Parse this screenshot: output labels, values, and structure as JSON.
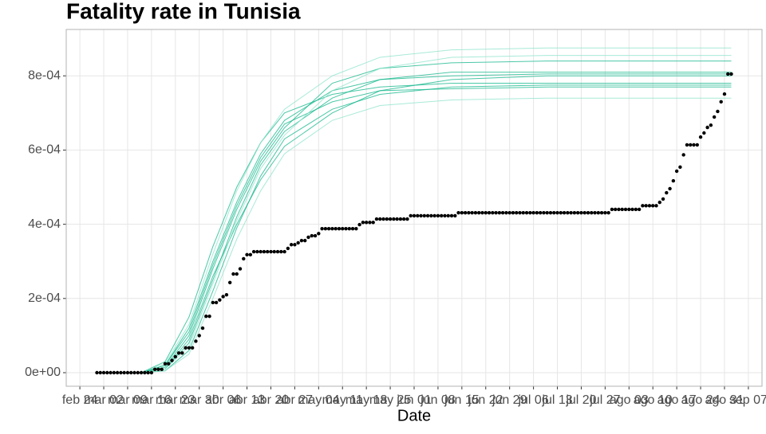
{
  "chart_data": {
    "type": "line",
    "title": "Fatality rate in  Tunisia",
    "x_label": "Date",
    "grid": true,
    "categories": [
      "feb 24",
      "feb 25",
      "feb 26",
      "feb 27",
      "feb 28",
      "feb 29",
      "mar 01",
      "mar 02",
      "mar 03",
      "mar 04",
      "mar 05",
      "mar 06",
      "mar 07",
      "mar 08",
      "mar 09",
      "mar 10",
      "mar 11",
      "mar 12",
      "mar 13",
      "mar 14",
      "mar 15",
      "mar 16",
      "mar 17",
      "mar 18",
      "mar 19",
      "mar 20",
      "mar 21",
      "mar 22",
      "mar 23",
      "mar 24",
      "mar 25",
      "mar 26",
      "mar 27",
      "mar 28",
      "mar 29",
      "mar 30",
      "mar 31",
      "abr 01",
      "abr 02",
      "abr 03",
      "abr 04",
      "abr 05",
      "abr 06",
      "abr 07",
      "abr 08",
      "abr 09",
      "abr 10",
      "abr 11",
      "abr 12",
      "abr 13",
      "abr 14",
      "abr 15",
      "abr 16",
      "abr 17",
      "abr 18",
      "abr 19",
      "abr 20",
      "abr 21",
      "abr 22",
      "abr 23",
      "abr 24",
      "abr 25",
      "abr 26",
      "abr 27",
      "abr 28",
      "abr 29",
      "abr 30",
      "may 01",
      "may 02",
      "may 03",
      "may 04",
      "may 05",
      "may 06",
      "may 07",
      "may 08",
      "may 09",
      "may 10",
      "may 11",
      "may 12",
      "may 13",
      "may 14",
      "may 15",
      "may 16",
      "may 17",
      "may 18",
      "may 19",
      "may 20",
      "may 21",
      "may 22",
      "may 23",
      "may 24",
      "may 25",
      "may 26",
      "may 27",
      "may 28",
      "may 29",
      "may 30",
      "may 31",
      "jun 01",
      "jun 02",
      "jun 03",
      "jun 04",
      "jun 05",
      "jun 06",
      "jun 07",
      "jun 08",
      "jun 09",
      "jun 10",
      "jun 11",
      "jun 12",
      "jun 13",
      "jun 14",
      "jun 15",
      "jun 16",
      "jun 17",
      "jun 18",
      "jun 19",
      "jun 20",
      "jun 21",
      "jun 22",
      "jun 23",
      "jun 24",
      "jun 25",
      "jun 26",
      "jun 27",
      "jun 28",
      "jun 29",
      "jun 30",
      "jul 01",
      "jul 02",
      "jul 03",
      "jul 04",
      "jul 05",
      "jul 06",
      "jul 07",
      "jul 08",
      "jul 09",
      "jul 10",
      "jul 11",
      "jul 12",
      "jul 13",
      "jul 14",
      "jul 15",
      "jul 16",
      "jul 17",
      "jul 18",
      "jul 19",
      "jul 20",
      "jul 21",
      "jul 22",
      "jul 23",
      "jul 24",
      "jul 25",
      "jul 26",
      "jul 27",
      "jul 28",
      "jul 29",
      "jul 30",
      "jul 31",
      "ago 01",
      "ago 02",
      "ago 03",
      "ago 04",
      "ago 05",
      "ago 06",
      "ago 07",
      "ago 08",
      "ago 09",
      "ago 10",
      "ago 11",
      "ago 12",
      "ago 13",
      "ago 14",
      "ago 15",
      "ago 16",
      "ago 17",
      "ago 18",
      "ago 19",
      "ago 20",
      "ago 21",
      "ago 22",
      "ago 23",
      "ago 24",
      "ago 25",
      "ago 26",
      "ago 27",
      "ago 28",
      "ago 29",
      "ago 30",
      "ago 31",
      "sep 01",
      "sep 02",
      "sep 03",
      "sep 04",
      "sep 05",
      "sep 06",
      "sep 07"
    ],
    "xticks": [
      "feb 24",
      "mar 02",
      "mar 09",
      "mar 16",
      "mar 23",
      "mar 30",
      "abr 06",
      "abr 13",
      "abr 20",
      "abr 27",
      "may 04",
      "may 11",
      "may 18",
      "may 25",
      "jun 01",
      "jun 08",
      "jun 15",
      "jun 22",
      "jun 29",
      "jul 06",
      "jul 13",
      "jul 20",
      "jul 27",
      "ago 03",
      "ago 10",
      "ago 17",
      "ago 24",
      "ago 31",
      "sep 07"
    ],
    "ylim": [
      -3.65e-05,
      0.000925
    ],
    "yticks": [
      {
        "value": 0,
        "label": "0e+00"
      },
      {
        "value": 0.0002,
        "label": "2e-04"
      },
      {
        "value": 0.0004,
        "label": "4e-04"
      },
      {
        "value": 0.0006,
        "label": "6e-04"
      },
      {
        "value": 0.0008,
        "label": "8e-04"
      }
    ],
    "series": [
      {
        "type": "scatter",
        "color": "#000000",
        "values": [
          null,
          null,
          null,
          null,
          null,
          0,
          0,
          0,
          0,
          0,
          0,
          0,
          0,
          0,
          0,
          0,
          0,
          0,
          0,
          0,
          0,
          0,
          9e-06,
          9e-06,
          9e-06,
          2.4e-05,
          2.4e-05,
          3.3e-05,
          4.3e-05,
          5.3e-05,
          5.3e-05,
          6.7e-05,
          6.7e-05,
          6.7e-05,
          8.5e-05,
          0.0001,
          0.00012,
          0.000152,
          0.000152,
          0.000189,
          0.000189,
          0.000196,
          0.000205,
          0.00021,
          0.000243,
          0.000266,
          0.000266,
          0.00028,
          0.000307,
          0.000318,
          0.000318,
          0.000326,
          0.000326,
          0.000326,
          0.000326,
          0.000326,
          0.000326,
          0.000326,
          0.000326,
          0.000326,
          0.000326,
          0.000335,
          0.000345,
          0.000345,
          0.00035,
          0.000356,
          0.000356,
          0.000365,
          0.000369,
          0.000369,
          0.000375,
          0.000388,
          0.000388,
          0.000388,
          0.000388,
          0.000388,
          0.000388,
          0.000388,
          0.000388,
          0.000388,
          0.000388,
          0.000388,
          0.000399,
          0.000405,
          0.000405,
          0.000405,
          0.000405,
          0.000414,
          0.000414,
          0.000414,
          0.000414,
          0.000414,
          0.000414,
          0.000414,
          0.000414,
          0.000414,
          0.000414,
          0.000423,
          0.000423,
          0.000423,
          0.000423,
          0.000423,
          0.000423,
          0.000423,
          0.000423,
          0.000423,
          0.000423,
          0.000423,
          0.000423,
          0.000423,
          0.000423,
          0.000431,
          0.000431,
          0.000431,
          0.000431,
          0.000431,
          0.000431,
          0.000431,
          0.000431,
          0.000431,
          0.000431,
          0.000431,
          0.000431,
          0.000431,
          0.000431,
          0.000431,
          0.000431,
          0.000431,
          0.000431,
          0.000431,
          0.000431,
          0.000431,
          0.000431,
          0.000431,
          0.000431,
          0.000431,
          0.000431,
          0.000431,
          0.000431,
          0.000431,
          0.000431,
          0.000431,
          0.000431,
          0.000431,
          0.000431,
          0.000431,
          0.000431,
          0.000431,
          0.000431,
          0.000431,
          0.000431,
          0.000431,
          0.000431,
          0.000431,
          0.000431,
          0.000431,
          0.00044,
          0.00044,
          0.00044,
          0.00044,
          0.00044,
          0.00044,
          0.00044,
          0.00044,
          0.00044,
          0.00045,
          0.00045,
          0.00045,
          0.00045,
          0.00045,
          0.000459,
          0.000468,
          0.000485,
          0.000496,
          0.000517,
          0.000543,
          0.000554,
          0.000587,
          0.000614,
          0.000614,
          0.000614,
          0.000614,
          0.000635,
          0.000646,
          0.000661,
          0.000667,
          0.000689,
          0.000704,
          0.00073,
          0.000751,
          0.000805,
          0.000805,
          null,
          null,
          null,
          null,
          null
        ]
      }
    ],
    "simulations": {
      "x": [
        "mar 13",
        "mar 20",
        "mar 27",
        "abr 03",
        "abr 10",
        "abr 17",
        "abr 24",
        "may 08",
        "may 22",
        "jun 12",
        "jul 10",
        "sep 02"
      ],
      "series": [
        {
          "color": "#0fb58a",
          "values": [
            0,
            1e-05,
            8e-05,
            0.00025,
            0.00042,
            0.00056,
            0.00065,
            0.00074,
            0.00079,
            0.0008,
            0.000805,
            0.000805
          ]
        },
        {
          "color": "#0fb58a",
          "values": [
            0,
            2e-05,
            0.00012,
            0.0003,
            0.00046,
            0.00059,
            0.00068,
            0.00076,
            0.00079,
            0.00081,
            0.00081,
            0.00081
          ]
        },
        {
          "color": "#0fb58a",
          "values": [
            0,
            5e-06,
            6e-05,
            0.00022,
            0.00039,
            0.00053,
            0.00063,
            0.00071,
            0.00075,
            0.00077,
            0.000775,
            0.000775
          ]
        },
        {
          "color": "#0fb58a",
          "values": [
            0,
            1.5e-05,
            0.0001,
            0.00028,
            0.00044,
            0.00057,
            0.00066,
            0.00078,
            0.00082,
            0.000835,
            0.00084,
            0.00084
          ]
        },
        {
          "color": "#0fb58a",
          "values": [
            0,
            3e-05,
            0.00015,
            0.00034,
            0.0005,
            0.00062,
            0.0007,
            0.00075,
            0.00077,
            0.00078,
            0.00078,
            0.00078
          ]
        },
        {
          "color": "#0fb58a",
          "values": [
            0,
            1e-05,
            9e-05,
            0.00026,
            0.0004,
            0.00052,
            0.00061,
            0.0007,
            0.00076,
            0.00079,
            0.0008,
            0.0008
          ]
        },
        {
          "color": "#8be3cb",
          "values": [
            0,
            2.5e-05,
            0.00013,
            0.00032,
            0.00049,
            0.00062,
            0.00071,
            0.0008,
            0.00085,
            0.00087,
            0.000875,
            0.000875
          ]
        },
        {
          "color": "#8be3cb",
          "values": [
            0,
            5e-06,
            5e-05,
            0.0002,
            0.00036,
            0.00049,
            0.00059,
            0.00068,
            0.00072,
            0.000735,
            0.00074,
            0.00074
          ]
        },
        {
          "color": "#0fb58a",
          "values": [
            0,
            2e-05,
            0.00011,
            0.00029,
            0.00045,
            0.00058,
            0.00067,
            0.00073,
            0.00076,
            0.000765,
            0.00077,
            0.00077
          ]
        },
        {
          "color": "#8be3cb",
          "values": [
            0,
            1e-05,
            7e-05,
            0.00024,
            0.00041,
            0.00055,
            0.00064,
            0.00076,
            0.00082,
            0.00085,
            0.000855,
            0.000855
          ]
        }
      ]
    }
  }
}
